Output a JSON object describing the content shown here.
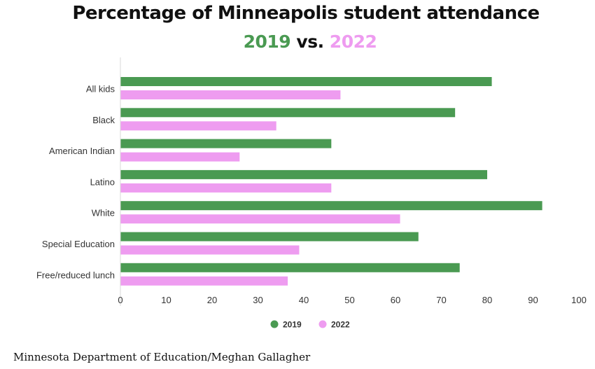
{
  "chart_data": {
    "type": "bar",
    "orientation": "horizontal",
    "title": "Percentage of Minneapolis student attendance",
    "subtitle": {
      "part1": "2019",
      "part2": " vs. ",
      "part3": "2022"
    },
    "categories": [
      "All kids",
      "Black",
      "American Indian",
      "Latino",
      "White",
      "Special Education",
      "Free/reduced lunch"
    ],
    "series": [
      {
        "name": "2019",
        "color": "#4a9a52",
        "values": [
          81,
          73,
          46,
          80,
          92,
          65,
          74
        ]
      },
      {
        "name": "2022",
        "color": "#ee9cf0",
        "values": [
          48,
          34,
          26,
          46,
          61,
          39,
          36.5
        ]
      }
    ],
    "xlim": [
      0,
      100
    ],
    "xticks": [
      0,
      10,
      20,
      30,
      40,
      50,
      60,
      70,
      80,
      90,
      100
    ],
    "grid": false,
    "legend_position": "bottom-center"
  },
  "source": "Minnesota Department of Education/Meghan Gallagher"
}
